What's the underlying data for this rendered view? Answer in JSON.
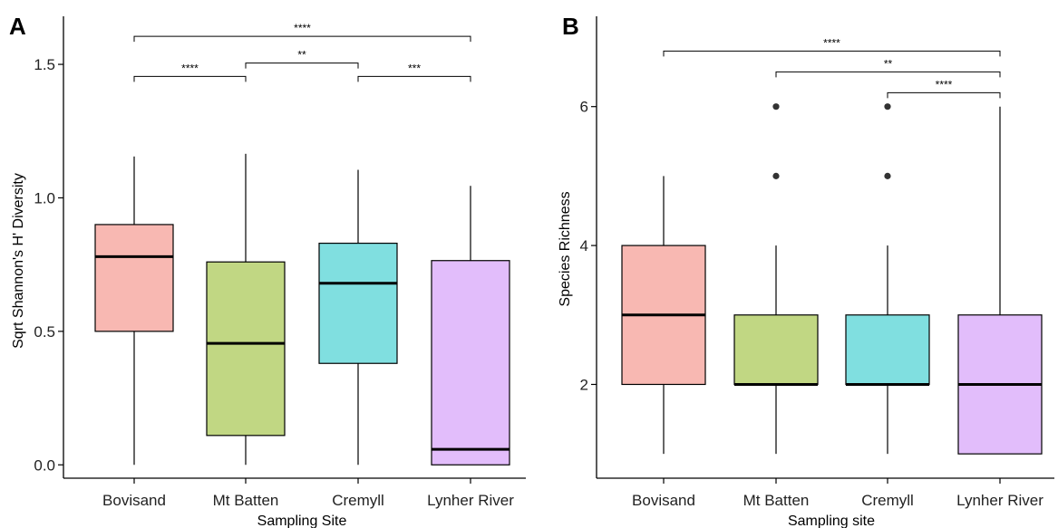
{
  "chart_data": [
    {
      "type": "box",
      "panel_label": "A",
      "xlabel": "Sampling Site",
      "ylabel": "Sqrt Shannon's H' Diversity",
      "ylim": [
        -0.05,
        1.68
      ],
      "yticks": [
        0.0,
        0.5,
        1.0,
        1.5
      ],
      "ytick_labels": [
        "0.0",
        "0.5",
        "1.0",
        "1.5"
      ],
      "categories": [
        "Bovisand",
        "Mt Batten",
        "Cremyll",
        "Lynher River"
      ],
      "colors": [
        "#f8b8b2",
        "#c1d783",
        "#80dfe0",
        "#e2bdfb"
      ],
      "boxes": [
        {
          "whisker_low": 0.0,
          "q1": 0.5,
          "median": 0.78,
          "q3": 0.9,
          "whisker_high": 1.155,
          "outliers": []
        },
        {
          "whisker_low": 0.0,
          "q1": 0.11,
          "median": 0.455,
          "q3": 0.76,
          "whisker_high": 1.165,
          "outliers": []
        },
        {
          "whisker_low": 0.0,
          "q1": 0.38,
          "median": 0.68,
          "q3": 0.83,
          "whisker_high": 1.105,
          "outliers": []
        },
        {
          "whisker_low": 0.0,
          "q1": 0.0,
          "median": 0.058,
          "q3": 0.765,
          "whisker_high": 1.045,
          "outliers": []
        }
      ],
      "comparisons": [
        {
          "from": 0,
          "to": 3,
          "y": 1.605,
          "label": "****"
        },
        {
          "from": 0,
          "to": 1,
          "y": 1.455,
          "label": "****"
        },
        {
          "from": 1,
          "to": 2,
          "y": 1.505,
          "label": "**"
        },
        {
          "from": 2,
          "to": 3,
          "y": 1.455,
          "label": "***"
        }
      ]
    },
    {
      "type": "box",
      "panel_label": "B",
      "xlabel": "Sampling site",
      "ylabel": "Species Richness",
      "ylim": [
        0.65,
        7.3
      ],
      "yticks": [
        2,
        4,
        6
      ],
      "ytick_labels": [
        "2",
        "4",
        "6"
      ],
      "categories": [
        "Bovisand",
        "Mt Batten",
        "Cremyll",
        "Lynher River"
      ],
      "colors": [
        "#f8b8b2",
        "#c1d783",
        "#80dfe0",
        "#e2bdfb"
      ],
      "boxes": [
        {
          "whisker_low": 1,
          "q1": 2,
          "median": 3,
          "q3": 4,
          "whisker_high": 5,
          "outliers": []
        },
        {
          "whisker_low": 1,
          "q1": 2,
          "median": 2,
          "q3": 3,
          "whisker_high": 4,
          "outliers": [
            5,
            6
          ]
        },
        {
          "whisker_low": 1,
          "q1": 2,
          "median": 2,
          "q3": 3,
          "whisker_high": 4,
          "outliers": [
            5,
            6
          ]
        },
        {
          "whisker_low": 1,
          "q1": 1,
          "median": 2,
          "q3": 3,
          "whisker_high": 6,
          "outliers": []
        }
      ],
      "comparisons": [
        {
          "from": 0,
          "to": 3,
          "y": 6.8,
          "label": "****"
        },
        {
          "from": 1,
          "to": 3,
          "y": 6.5,
          "label": "**"
        },
        {
          "from": 2,
          "to": 3,
          "y": 6.2,
          "label": "****"
        }
      ]
    }
  ]
}
